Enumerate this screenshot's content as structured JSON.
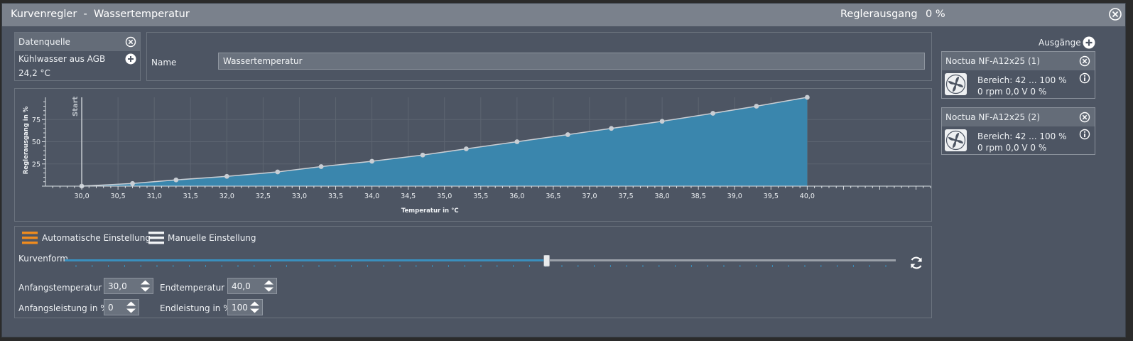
{
  "window": {
    "title": "Kurvenregler  -  Wassertemperatur",
    "output_label": "Reglerausgang",
    "output_value": "0 %"
  },
  "source": {
    "header": "Datenquelle",
    "sensor": "Kühlwasser aus AGB",
    "value": "24,2 °C"
  },
  "name_field": {
    "label": "Name",
    "value": "Wassertemperatur"
  },
  "chart_data": {
    "type": "area",
    "xlabel": "Temperatur in °C",
    "ylabel": "Reglerausgang in %",
    "marker_label": "Start",
    "xlim": [
      29.5,
      41.7
    ],
    "ylim": [
      0,
      100
    ],
    "x": [
      30.0,
      30.7,
      31.3,
      32.0,
      32.7,
      33.3,
      34.0,
      34.7,
      35.3,
      36.0,
      36.7,
      37.3,
      38.0,
      38.7,
      39.3,
      40.0
    ],
    "y": [
      0,
      3,
      7,
      11,
      16,
      22,
      28,
      35,
      42,
      50,
      58,
      65,
      73,
      82,
      90,
      100
    ],
    "x_ticks": [
      "30,0",
      "30,5",
      "31,0",
      "31,5",
      "32,0",
      "32,5",
      "33,0",
      "33,5",
      "34,0",
      "34,5",
      "35,0",
      "35,5",
      "36,0",
      "36,5",
      "37,0",
      "37,5",
      "38,0",
      "38,5",
      "39,0",
      "39,5",
      "40,0"
    ],
    "y_ticks": [
      "25",
      "50",
      "75"
    ],
    "fill_color": "#3a86ad",
    "line_color": "#c9ced4"
  },
  "controls": {
    "auto_label": "Automatische Einstellung",
    "manual_label": "Manuelle Einstellung",
    "curve_label": "Kurvenform",
    "curve_level_percent": 58,
    "start_temp_label": "Anfangstemperatur",
    "start_temp_value": "30,0",
    "end_temp_label": "Endtemperatur",
    "end_temp_value": "40,0",
    "start_power_label": "Anfangsleistung in %",
    "start_power_value": "0",
    "end_power_label": "Endleistung in %",
    "end_power_value": "100",
    "accent": "#f08c1e"
  },
  "outputs": {
    "header": "Ausgänge",
    "items": [
      {
        "name": "Noctua NF-A12x25 (1)",
        "range": "Bereich:  42 ... 100  %",
        "status": "0 rpm  0,0 V  0 %"
      },
      {
        "name": "Noctua NF-A12x25 (2)",
        "range": "Bereich:  42 ... 100  %",
        "status": "0 rpm  0,0 V  0 %"
      }
    ]
  },
  "icons": {
    "close": "close-circle-icon",
    "add": "plus-circle-icon",
    "info": "info-icon",
    "fan": "fan-icon",
    "reset": "refresh-icon"
  }
}
